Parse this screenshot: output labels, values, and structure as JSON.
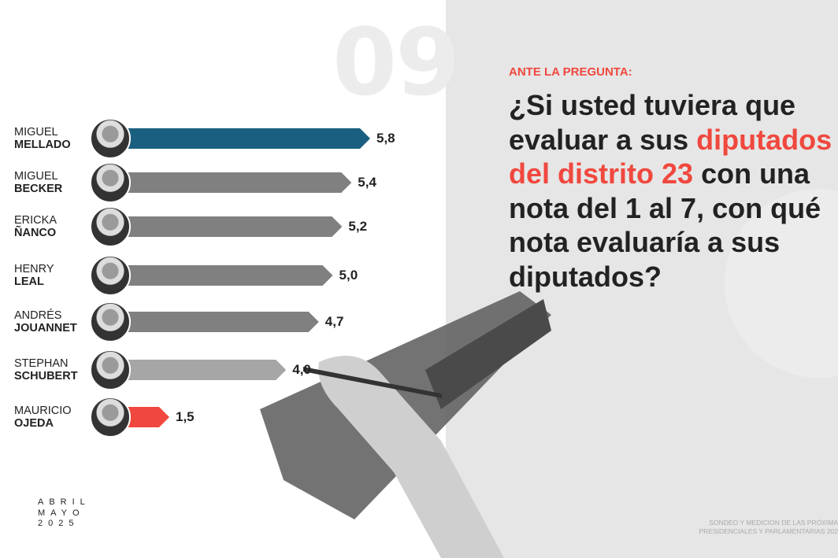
{
  "page_number": "09",
  "kicker": "ANTE LA PREGUNTA:",
  "question": [
    {
      "text": "¿Si usted tuviera que",
      "hl": false
    },
    {
      "text": "evaluar a sus ",
      "hl": false
    },
    {
      "text": "diputados",
      "hl": true
    },
    {
      "text": "del distrito 23",
      "hl": true
    },
    {
      "text": " con una",
      "hl": false
    },
    {
      "text": "nota del 1 al 7, con qué",
      "hl": false
    },
    {
      "text": "nota evaluaría a sus",
      "hl": false
    },
    {
      "text": "diputados?",
      "hl": false
    }
  ],
  "date": {
    "line1": "ABRIL",
    "line2": "MAYO",
    "line3": "2025"
  },
  "footer": {
    "line1": "SONDEO Y MEDICION DE LAS PRÓXIMA",
    "line2": "PRESIDENCIALES Y PARLAMENTARIAS 202"
  },
  "colors": {
    "highlight": "#f0483e",
    "top": "#1a5f80",
    "default": "#808080",
    "light": "#a6a6a6",
    "low": "#f0483e",
    "panel": "#e6e6e6"
  },
  "chart_data": {
    "type": "bar",
    "orientation": "horizontal",
    "categories": [
      "MIGUEL MELLADO",
      "MIGUEL BECKER",
      "ERICKA ÑANCO",
      "HENRY LEAL",
      "ANDRÉS JOUANNET",
      "STEPHAN SCHUBERT",
      "MAURICIO OJEDA"
    ],
    "items": [
      {
        "first": "MIGUEL",
        "last": "MELLADO",
        "value": 5.8,
        "label": "5,8",
        "color": "#1a5f80"
      },
      {
        "first": "MIGUEL",
        "last": "BECKER",
        "value": 5.4,
        "label": "5,4",
        "color": "#808080"
      },
      {
        "first": "ERICKA",
        "last": "ÑANCO",
        "value": 5.2,
        "label": "5,2",
        "color": "#808080"
      },
      {
        "first": "HENRY",
        "last": "LEAL",
        "value": 5.0,
        "label": "5,0",
        "color": "#808080"
      },
      {
        "first": "ANDRÉS",
        "last": "JOUANNET",
        "value": 4.7,
        "label": "4,7",
        "color": "#808080"
      },
      {
        "first": "STEPHAN",
        "last": "SCHUBERT",
        "value": 4.0,
        "label": "4,0",
        "color": "#a6a6a6"
      },
      {
        "first": "MAURICIO",
        "last": "OJEDA",
        "value": 1.5,
        "label": "1,5",
        "color": "#f0483e"
      }
    ],
    "xlim": [
      1,
      7
    ],
    "grid": false,
    "legend": "none"
  }
}
